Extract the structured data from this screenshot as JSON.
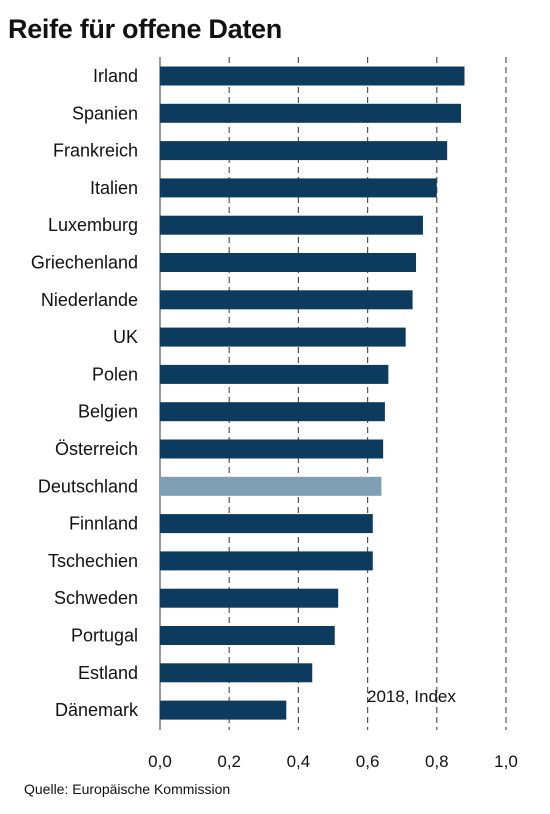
{
  "title": "Reife für offene Daten",
  "source": "Quelle: Europäische Kommission",
  "colors": {
    "bar": "#0d3b5e",
    "highlight": "#7f9fb4",
    "grid": "#555555"
  },
  "chart_data": {
    "type": "bar",
    "orientation": "horizontal",
    "title": "Reife für offene Daten",
    "annotation": "2018, Index",
    "categories": [
      "Irland",
      "Spanien",
      "Frankreich",
      "Italien",
      "Luxemburg",
      "Griechenland",
      "Niederlande",
      "UK",
      "Polen",
      "Belgien",
      "Österreich",
      "Deutschland",
      "Finnland",
      "Tschechien",
      "Schweden",
      "Portugal",
      "Estland",
      "Dänemark"
    ],
    "values": [
      0.88,
      0.87,
      0.83,
      0.8,
      0.76,
      0.74,
      0.73,
      0.71,
      0.66,
      0.65,
      0.645,
      0.64,
      0.615,
      0.615,
      0.515,
      0.505,
      0.44,
      0.365
    ],
    "highlight": "Deutschland",
    "xlim": [
      0,
      1.0
    ],
    "xticks": [
      "0,0",
      "0,2",
      "0,4",
      "0,6",
      "0,8",
      "1,0"
    ],
    "grid": "vertical dashed"
  }
}
